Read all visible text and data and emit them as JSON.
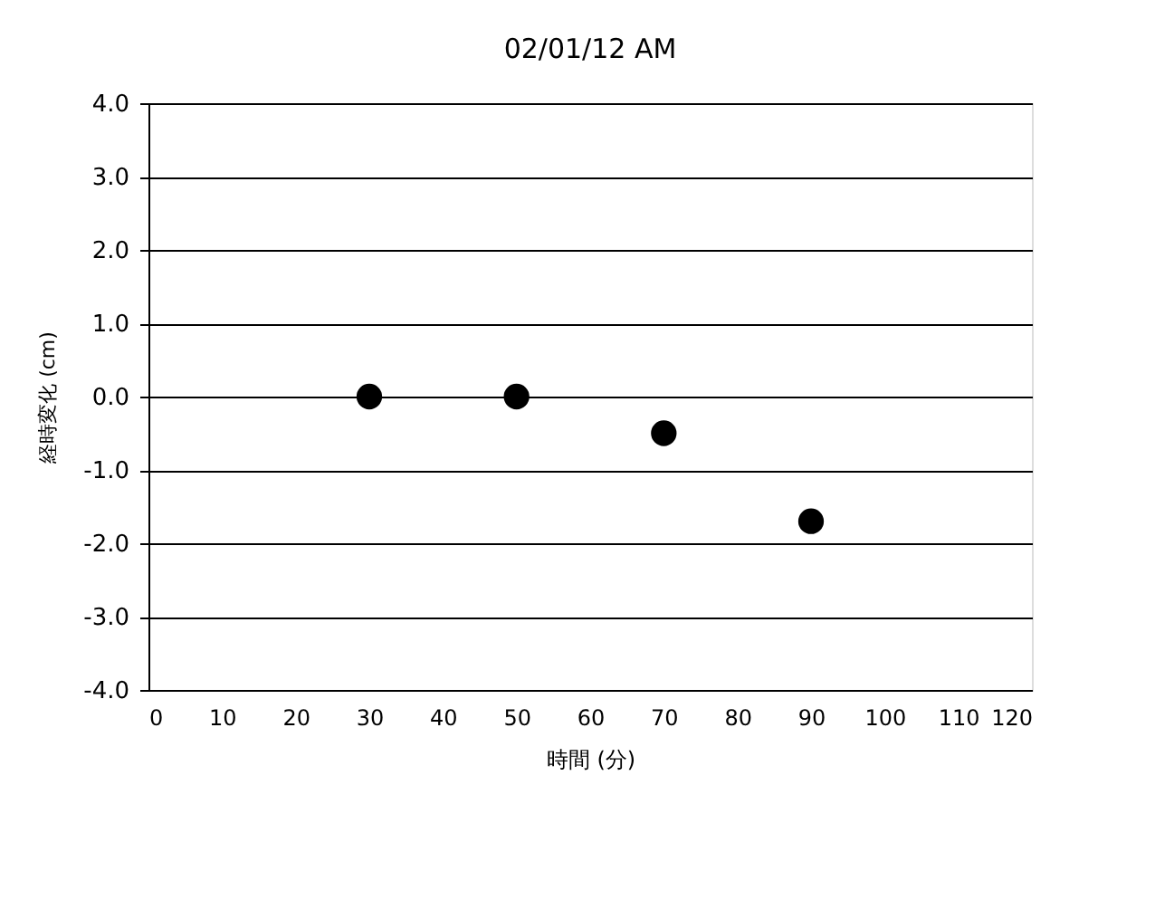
{
  "chart_data": {
    "type": "scatter",
    "title": "02/01/12 AM",
    "xlabel": "時間 (分)",
    "ylabel": "経時変化 (cm)",
    "x": [
      30,
      50,
      70,
      90
    ],
    "series": [
      {
        "color": "#000000",
        "values": [
          0.0,
          0.0,
          -0.5,
          -1.7
        ]
      }
    ],
    "xlim": [
      0,
      120
    ],
    "xticks": [
      0,
      10,
      20,
      30,
      40,
      50,
      60,
      70,
      80,
      90,
      100,
      110,
      120
    ],
    "ylim": [
      -4,
      4
    ],
    "yticks": [
      {
        "value": -4,
        "label": "-4.0"
      },
      {
        "value": -3,
        "label": "-3.0"
      },
      {
        "value": -2,
        "label": "-2.0"
      },
      {
        "value": -1,
        "label": "-1.0"
      },
      {
        "value": 0,
        "label": "0.0"
      },
      {
        "value": 1,
        "label": "1.0"
      },
      {
        "value": 2,
        "label": "2.0"
      },
      {
        "value": 3,
        "label": "3.0"
      },
      {
        "value": 4,
        "label": "4.0"
      }
    ],
    "grid": "y",
    "marker": "circle"
  }
}
